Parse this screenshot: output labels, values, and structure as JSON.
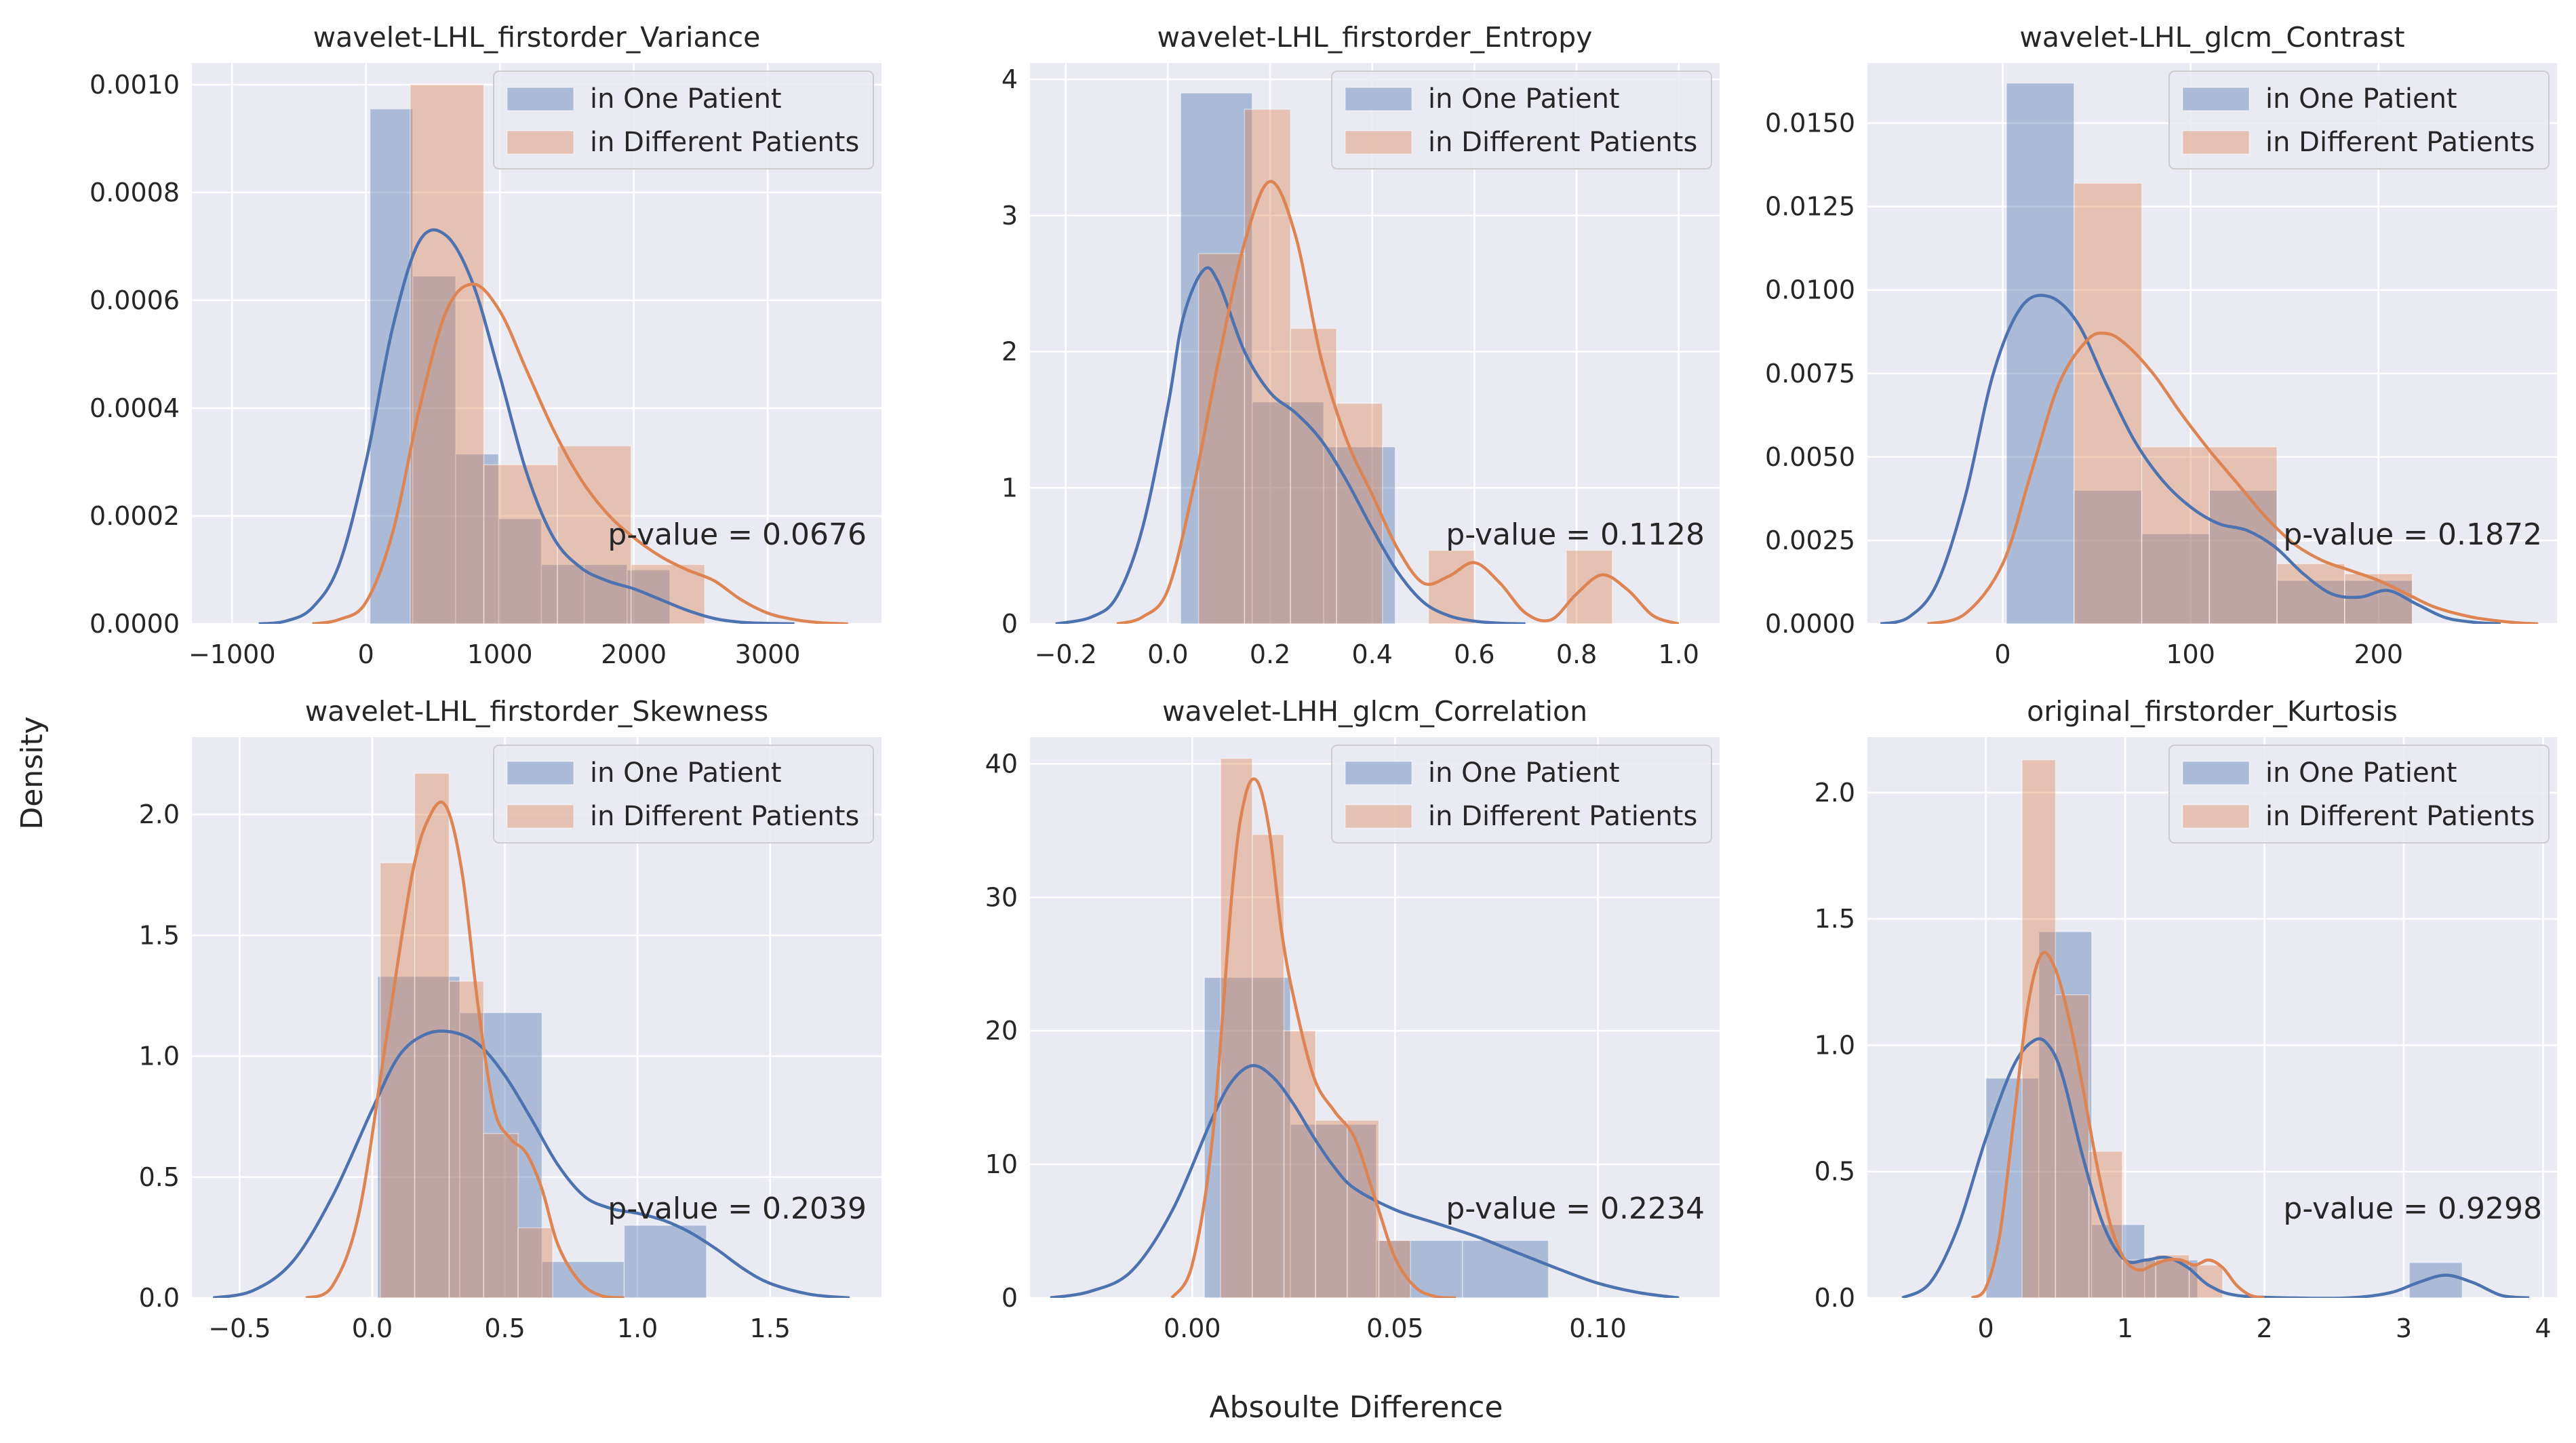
{
  "figure": {
    "ylabel": "Density",
    "xlabel": "Absoulte Difference",
    "legend": [
      "in One Patient",
      "in Different Patients"
    ],
    "colors": {
      "series1": "#4c72b0",
      "series2": "#dd8452",
      "panel_bg": "#eaeaf2",
      "grid": "#ffffff"
    }
  },
  "chart_data": [
    {
      "type": "bar",
      "title": "wavelet-LHL_firstorder_Variance",
      "xlim": [
        -1300,
        3850
      ],
      "ylim": [
        0,
        0.00104
      ],
      "xticks": [
        -1000,
        0,
        1000,
        2000,
        3000
      ],
      "xtick_labels": [
        "−1000",
        "0",
        "1000",
        "2000",
        "3000"
      ],
      "yticks": [
        0,
        0.0002,
        0.0004,
        0.0006,
        0.0008,
        0.001
      ],
      "ytick_labels": [
        "0.0000",
        "0.0002",
        "0.0004",
        "0.0006",
        "0.0008",
        "0.0010"
      ],
      "legend_position": "upper right",
      "annotation": "p-value = 0.0676",
      "series": [
        {
          "name": "in One Patient",
          "bins": [
            30,
            350,
            670,
            990,
            1310,
            1630,
            1950,
            2270
          ],
          "values": [
            0.000955,
            0.000645,
            0.000315,
            0.000195,
            0.00011,
            0.00011,
            0.0001
          ],
          "kde_x": [
            -800,
            -600,
            -400,
            -200,
            0,
            200,
            400,
            600,
            800,
            1000,
            1200,
            1400,
            1600,
            1800,
            2000,
            2200,
            2400,
            2600,
            2800,
            3000,
            3200
          ],
          "kde_y": [
            0,
            5e-06,
            3e-05,
            0.00011,
            0.0003,
            0.00055,
            0.00071,
            0.00072,
            0.00063,
            0.00046,
            0.00028,
            0.00016,
            0.000105,
            8e-05,
            6.5e-05,
            4.5e-05,
            2.5e-05,
            1e-05,
            3e-06,
            1e-06,
            0
          ]
        },
        {
          "name": "in Different Patients",
          "bins": [
            330,
            880,
            1430,
            1980,
            2530
          ],
          "values": [
            0.001,
            0.000295,
            0.00033,
            0.00011
          ],
          "kde_x": [
            -400,
            -200,
            0,
            200,
            400,
            600,
            800,
            1000,
            1200,
            1400,
            1600,
            1800,
            2000,
            2200,
            2400,
            2600,
            2800,
            3000,
            3200,
            3400,
            3600
          ],
          "kde_y": [
            0,
            8e-06,
            4e-05,
            0.00017,
            0.0004,
            0.00058,
            0.00063,
            0.00058,
            0.00047,
            0.00036,
            0.00027,
            0.000205,
            0.00016,
            0.000125,
            0.0001,
            8e-05,
            4.5e-05,
            2e-05,
            8e-06,
            2e-06,
            0
          ]
        }
      ]
    },
    {
      "type": "bar",
      "title": "wavelet-LHL_firstorder_Entropy",
      "xlim": [
        -0.27,
        1.08
      ],
      "ylim": [
        0,
        4.12
      ],
      "xticks": [
        -0.2,
        0,
        0.2,
        0.4,
        0.6,
        0.8,
        1.0
      ],
      "xtick_labels": [
        "−0.2",
        "0.0",
        "0.2",
        "0.4",
        "0.6",
        "0.8",
        "1.0"
      ],
      "yticks": [
        0,
        1,
        2,
        3,
        4
      ],
      "ytick_labels": [
        "0",
        "1",
        "2",
        "3",
        "4"
      ],
      "legend_position": "upper right",
      "annotation": "p-value = 0.1128",
      "series": [
        {
          "name": "in One Patient",
          "bins": [
            0.025,
            0.165,
            0.305,
            0.445
          ],
          "values": [
            3.9,
            1.63,
            1.3
          ],
          "kde_x": [
            -0.22,
            -0.15,
            -0.1,
            -0.05,
            0,
            0.03,
            0.07,
            0.1,
            0.15,
            0.2,
            0.25,
            0.3,
            0.35,
            0.4,
            0.45,
            0.5,
            0.55,
            0.6,
            0.65,
            0.7
          ],
          "kde_y": [
            0,
            0.05,
            0.2,
            0.7,
            1.6,
            2.25,
            2.6,
            2.5,
            2.0,
            1.7,
            1.55,
            1.35,
            1.05,
            0.7,
            0.38,
            0.16,
            0.06,
            0.02,
            0.005,
            0
          ]
        },
        {
          "name": "in Different Patients",
          "bins": [
            0.06,
            0.15,
            0.24,
            0.33,
            0.42,
            0.51,
            0.6,
            0.69,
            0.78,
            0.87
          ],
          "values": [
            2.72,
            3.78,
            2.17,
            1.62,
            0,
            0.54,
            0,
            0,
            0.54
          ],
          "kde_x": [
            -0.1,
            -0.05,
            0,
            0.05,
            0.1,
            0.15,
            0.2,
            0.25,
            0.3,
            0.35,
            0.4,
            0.45,
            0.5,
            0.55,
            0.6,
            0.65,
            0.7,
            0.75,
            0.8,
            0.85,
            0.9,
            0.95,
            1.0
          ],
          "kde_y": [
            0,
            0.05,
            0.25,
            1.0,
            1.95,
            2.8,
            3.25,
            2.85,
            1.95,
            1.35,
            0.95,
            0.55,
            0.3,
            0.35,
            0.45,
            0.3,
            0.08,
            0.03,
            0.22,
            0.36,
            0.25,
            0.06,
            0
          ]
        }
      ]
    },
    {
      "type": "bar",
      "title": "wavelet-LHL_glcm_Contrast",
      "xlim": [
        -72,
        295
      ],
      "ylim": [
        0,
        0.0168
      ],
      "xticks": [
        0,
        100,
        200
      ],
      "xtick_labels": [
        "0",
        "100",
        "200"
      ],
      "yticks": [
        0,
        0.0025,
        0.005,
        0.0075,
        0.01,
        0.0125,
        0.015
      ],
      "ytick_labels": [
        "0.0000",
        "0.0025",
        "0.0050",
        "0.0075",
        "0.0100",
        "0.0125",
        "0.0150"
      ],
      "legend_position": "upper right",
      "annotation": "p-value = 0.1872",
      "series": [
        {
          "name": "in One Patient",
          "bins": [
            2,
            38,
            74,
            110,
            146,
            182,
            218
          ],
          "values": [
            0.0162,
            0.004,
            0.0027,
            0.004,
            0.0013,
            0.0013
          ],
          "kde_x": [
            -65,
            -50,
            -35,
            -20,
            -5,
            10,
            25,
            40,
            55,
            70,
            85,
            100,
            115,
            130,
            145,
            160,
            175,
            190,
            205,
            220,
            235,
            250,
            265
          ],
          "kde_y": [
            0,
            0.0002,
            0.0012,
            0.0038,
            0.0075,
            0.0095,
            0.0098,
            0.009,
            0.0072,
            0.0055,
            0.0043,
            0.0035,
            0.003,
            0.0028,
            0.0023,
            0.0015,
            0.0009,
            0.0008,
            0.001,
            0.0006,
            0.0002,
            5e-05,
            0
          ]
        },
        {
          "name": "in Different Patients",
          "bins": [
            38,
            74,
            110,
            146,
            182,
            218
          ],
          "values": [
            0.0132,
            0.0053,
            0.0053,
            0.0018,
            0.0015
          ],
          "kde_x": [
            -40,
            -20,
            0,
            15,
            30,
            45,
            55,
            65,
            80,
            95,
            110,
            125,
            140,
            155,
            170,
            185,
            200,
            215,
            230,
            250,
            270,
            285
          ],
          "kde_y": [
            0,
            0.0003,
            0.0018,
            0.0045,
            0.0072,
            0.0085,
            0.0087,
            0.0084,
            0.0075,
            0.0063,
            0.0052,
            0.0042,
            0.0032,
            0.0024,
            0.0019,
            0.0016,
            0.0013,
            0.0009,
            0.0005,
            0.0002,
            5e-05,
            0
          ]
        }
      ]
    },
    {
      "type": "bar",
      "title": "wavelet-LHL_firstorder_Skewness",
      "xlim": [
        -0.68,
        1.92
      ],
      "ylim": [
        0,
        2.32
      ],
      "xticks": [
        -0.5,
        0,
        0.5,
        1.0,
        1.5
      ],
      "xtick_labels": [
        "−0.5",
        "0.0",
        "0.5",
        "1.0",
        "1.5"
      ],
      "yticks": [
        0,
        0.5,
        1.0,
        1.5,
        2.0
      ],
      "ytick_labels": [
        "0.0",
        "0.5",
        "1.0",
        "1.5",
        "2.0"
      ],
      "legend_position": "upper right",
      "annotation": "p-value = 0.2039",
      "series": [
        {
          "name": "in One Patient",
          "bins": [
            0.02,
            0.33,
            0.64,
            0.95,
            1.26
          ],
          "values": [
            1.33,
            1.18,
            0.15,
            0.3
          ],
          "kde_x": [
            -0.6,
            -0.45,
            -0.3,
            -0.15,
            0,
            0.1,
            0.2,
            0.3,
            0.4,
            0.5,
            0.6,
            0.7,
            0.8,
            0.9,
            1.0,
            1.1,
            1.2,
            1.3,
            1.4,
            1.5,
            1.65,
            1.8
          ],
          "kde_y": [
            0,
            0.03,
            0.15,
            0.42,
            0.78,
            1.0,
            1.09,
            1.1,
            1.05,
            0.92,
            0.74,
            0.55,
            0.42,
            0.37,
            0.35,
            0.32,
            0.27,
            0.2,
            0.12,
            0.06,
            0.015,
            0
          ]
        },
        {
          "name": "in Different Patients",
          "bins": [
            0.03,
            0.16,
            0.29,
            0.42,
            0.55,
            0.68
          ],
          "values": [
            1.8,
            2.17,
            1.31,
            0.68,
            0.29
          ],
          "kde_x": [
            -0.25,
            -0.15,
            -0.05,
            0.05,
            0.15,
            0.22,
            0.28,
            0.34,
            0.4,
            0.46,
            0.52,
            0.58,
            0.64,
            0.7,
            0.78,
            0.86,
            0.95
          ],
          "kde_y": [
            0,
            0.05,
            0.35,
            1.05,
            1.75,
            2.0,
            2.03,
            1.75,
            1.2,
            0.78,
            0.66,
            0.6,
            0.45,
            0.22,
            0.07,
            0.01,
            0
          ]
        }
      ]
    },
    {
      "type": "bar",
      "title": "wavelet-LHH_glcm_Correlation",
      "xlim": [
        -0.04,
        0.13
      ],
      "ylim": [
        0,
        42
      ],
      "xticks": [
        0,
        0.05,
        0.1
      ],
      "xtick_labels": [
        "0.00",
        "0.05",
        "0.10"
      ],
      "yticks": [
        0,
        10,
        20,
        30,
        40
      ],
      "ytick_labels": [
        "0",
        "10",
        "20",
        "30",
        "40"
      ],
      "legend_position": "upper right",
      "annotation": "p-value = 0.2234",
      "series": [
        {
          "name": "in One Patient",
          "bins": [
            0.003,
            0.0242,
            0.0454,
            0.0666,
            0.0878
          ],
          "values": [
            24,
            13,
            4.3,
            4.3
          ],
          "kde_x": [
            -0.035,
            -0.025,
            -0.015,
            -0.005,
            0.005,
            0.01,
            0.015,
            0.02,
            0.025,
            0.03,
            0.035,
            0.04,
            0.05,
            0.06,
            0.07,
            0.08,
            0.09,
            0.1,
            0.11,
            0.12
          ],
          "kde_y": [
            0,
            0.5,
            2.0,
            6.5,
            13.5,
            16.3,
            17.4,
            16.5,
            14.5,
            12.0,
            9.8,
            8.2,
            6.6,
            5.6,
            4.6,
            3.4,
            2.2,
            1.1,
            0.4,
            0
          ]
        },
        {
          "name": "in Different Patients",
          "bins": [
            0.007,
            0.0148,
            0.0226,
            0.0304,
            0.0382,
            0.046,
            0.0538
          ],
          "values": [
            40.4,
            34.7,
            20,
            13.3,
            13.3,
            4.3
          ],
          "kde_x": [
            -0.005,
            0,
            0.005,
            0.01,
            0.013,
            0.016,
            0.019,
            0.022,
            0.025,
            0.03,
            0.035,
            0.04,
            0.045,
            0.05,
            0.055,
            0.06,
            0.065
          ],
          "kde_y": [
            0,
            2.5,
            12.0,
            31.0,
            37.5,
            38.7,
            35.0,
            27.5,
            22.5,
            16.5,
            14.0,
            12.0,
            7.5,
            3.0,
            0.8,
            0.1,
            0
          ]
        }
      ]
    },
    {
      "type": "bar",
      "title": "original_firstorder_Kurtosis",
      "xlim": [
        -0.85,
        4.1
      ],
      "ylim": [
        0,
        2.22
      ],
      "xticks": [
        0,
        1,
        2,
        3,
        4
      ],
      "xtick_labels": [
        "0",
        "1",
        "2",
        "3",
        "4"
      ],
      "yticks": [
        0,
        0.5,
        1.0,
        1.5,
        2.0
      ],
      "ytick_labels": [
        "0.0",
        "0.5",
        "1.0",
        "1.5",
        "2.0"
      ],
      "legend_position": "upper right",
      "annotation": "p-value = 0.9298",
      "series": [
        {
          "name": "in One Patient",
          "bins": [
            0.0,
            0.38,
            0.76,
            1.14,
            1.52,
            1.9,
            2.28,
            2.66,
            3.04,
            3.42
          ],
          "values": [
            0.87,
            1.45,
            0.29,
            0.15,
            0,
            0,
            0,
            0,
            0.14
          ],
          "kde_x": [
            -0.6,
            -0.4,
            -0.2,
            0,
            0.2,
            0.35,
            0.45,
            0.55,
            0.7,
            0.85,
            1.0,
            1.15,
            1.3,
            1.45,
            1.6,
            1.8,
            2.2,
            2.6,
            2.9,
            3.1,
            3.3,
            3.5,
            3.7,
            3.9
          ],
          "kde_y": [
            0,
            0.06,
            0.28,
            0.63,
            0.92,
            1.02,
            1.0,
            0.88,
            0.55,
            0.28,
            0.15,
            0.15,
            0.16,
            0.12,
            0.05,
            0.01,
            0,
            0,
            0.02,
            0.06,
            0.09,
            0.06,
            0.01,
            0
          ]
        },
        {
          "name": "in Different Patients",
          "bins": [
            0.26,
            0.5,
            0.74,
            0.98,
            1.22,
            1.46,
            1.7
          ],
          "values": [
            2.13,
            1.2,
            0.58,
            0.15,
            0.17,
            0.13
          ],
          "kde_x": [
            -0.1,
            0,
            0.1,
            0.2,
            0.3,
            0.4,
            0.5,
            0.6,
            0.7,
            0.8,
            0.9,
            1.0,
            1.1,
            1.2,
            1.3,
            1.4,
            1.5,
            1.6,
            1.7,
            1.8,
            1.9,
            2.0
          ],
          "kde_y": [
            0,
            0.04,
            0.25,
            0.7,
            1.15,
            1.36,
            1.3,
            1.1,
            0.82,
            0.52,
            0.28,
            0.15,
            0.11,
            0.13,
            0.15,
            0.15,
            0.13,
            0.15,
            0.12,
            0.05,
            0.01,
            0
          ]
        }
      ]
    }
  ]
}
